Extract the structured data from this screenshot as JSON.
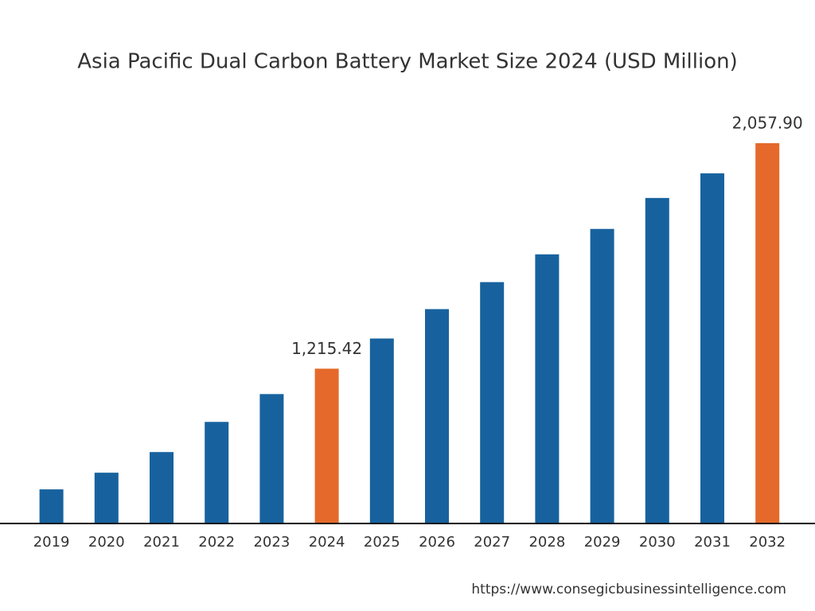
{
  "chart_data": {
    "type": "bar",
    "title": "Asia Pacific Dual Carbon Battery Market Size 2024 (USD Million)",
    "categories": [
      "2019",
      "2020",
      "2021",
      "2022",
      "2023",
      "2024",
      "2025",
      "2026",
      "2027",
      "2028",
      "2029",
      "2030",
      "2031",
      "2032"
    ],
    "values": [
      764.5,
      826.8,
      903.9,
      1016.6,
      1120.5,
      1215.42,
      1328.1,
      1437.9,
      1538.8,
      1642.6,
      1737.5,
      1853.2,
      1945.2,
      2057.9
    ],
    "value_labels": [
      null,
      null,
      null,
      null,
      null,
      "1,215.42",
      null,
      null,
      null,
      null,
      null,
      null,
      null,
      "2,057.90"
    ],
    "colors": [
      "#17629e",
      "#17629e",
      "#17629e",
      "#17629e",
      "#17629e",
      "#e5692a",
      "#17629e",
      "#17629e",
      "#17629e",
      "#17629e",
      "#17629e",
      "#17629e",
      "#17629e",
      "#e5692a"
    ],
    "ylim": [
      640,
      2160
    ],
    "source": "https://www.consegicbusinessintelligence.com"
  }
}
